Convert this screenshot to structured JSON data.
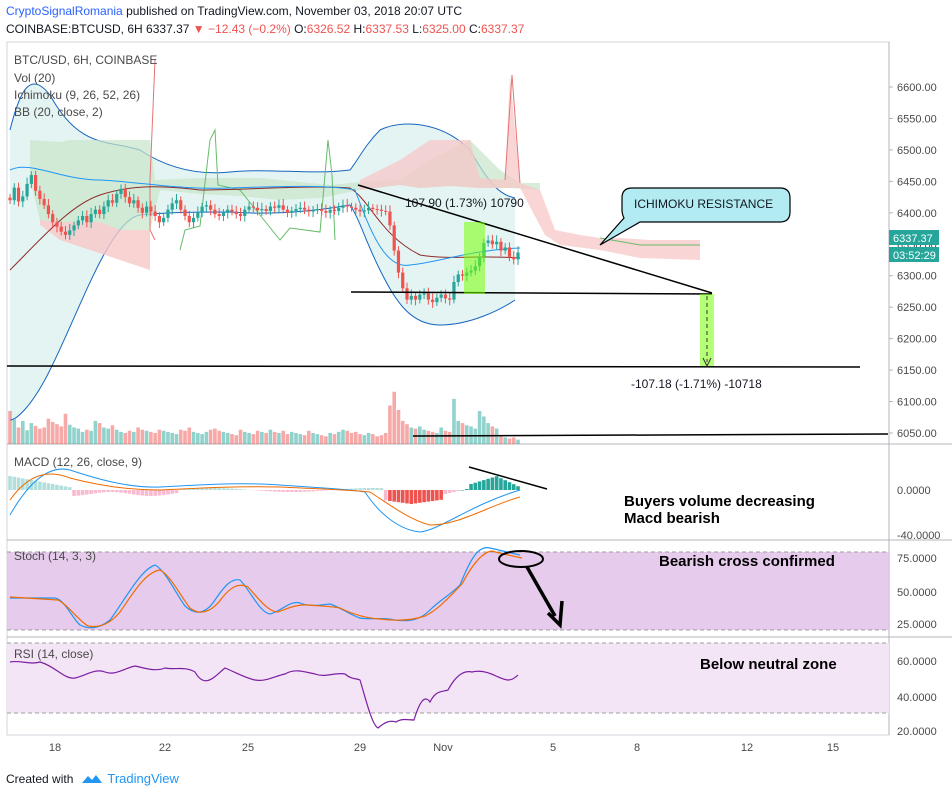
{
  "header": {
    "author": "CryptoSignalRomania",
    "published_text": "published on TradingView.com, November 03, 2018 20:07 UTC",
    "symbol": "COINBASE:BTCUSD, 6H",
    "last": "6337.37",
    "change": "−12.43 (−0.2%)",
    "o_label": "O:",
    "o": "6326.52",
    "h_label": "H:",
    "h": "6337.53",
    "l_label": "L:",
    "l": "6325.00",
    "c_label": "C:",
    "c": "6337.37"
  },
  "footer": {
    "created_with": "Created with",
    "brand": "TradingView",
    "logo_icon": "tradingview-logo-icon"
  },
  "colors": {
    "up": "#26a69a",
    "down": "#ef5350",
    "cloud_red": "#f7c7c7",
    "cloud_green": "#c8e6c9",
    "bb": "#2196f3",
    "stoch_bg": "#e1bee7",
    "rsi_bg": "#f3e5f5"
  },
  "chart_data": [
    {
      "type": "candlestick",
      "panel": "price",
      "legend": [
        "BTC/USD, 6H, COINBASE",
        "Vol (20)",
        "Ichimoku (9, 26, 52, 26)",
        "BB (20, close, 2)"
      ],
      "x_ticks": [
        "18",
        "22",
        "25",
        "29",
        "Nov",
        "5",
        "8",
        "12",
        "15"
      ],
      "y_ticks": [
        "6600.00",
        "6550.00",
        "6500.00",
        "6450.00",
        "6400.00",
        "6350.00",
        "6300.00",
        "6250.00",
        "6200.00",
        "6150.00",
        "6100.00",
        "6050.00"
      ],
      "ylim": [
        6030,
        6610
      ],
      "last_price_label": "6337.37",
      "countdown_label": "03:52:29",
      "close": [
        6420,
        6440,
        6418,
        6426,
        6446,
        6460,
        6435,
        6422,
        6412,
        6398,
        6385,
        6378,
        6370,
        6365,
        6372,
        6380,
        6388,
        6395,
        6385,
        6398,
        6405,
        6398,
        6410,
        6420,
        6416,
        6430,
        6438,
        6425,
        6415,
        6420,
        6408,
        6400,
        6410,
        6402,
        6395,
        6385,
        6392,
        6405,
        6415,
        6420,
        6405,
        6395,
        6385,
        6392,
        6400,
        6410,
        6412,
        6405,
        6398,
        6395,
        6400,
        6405,
        6402,
        6398,
        6395,
        6405,
        6410,
        6408,
        6404,
        6406,
        6403,
        6410,
        6408,
        6412,
        6405,
        6400,
        6403,
        6406,
        6408,
        6405,
        6402,
        6404,
        6406,
        6403,
        6400,
        6405,
        6403,
        6408,
        6412,
        6410,
        6408,
        6405,
        6402,
        6404,
        6408,
        6406,
        6405,
        6403,
        6402,
        6380,
        6340,
        6305,
        6280,
        6262,
        6268,
        6262,
        6270,
        6272,
        6262,
        6258,
        6265,
        6270,
        6264,
        6262,
        6290,
        6302,
        6300,
        6305,
        6308,
        6315,
        6330,
        6352,
        6356,
        6350,
        6354,
        6340,
        6345,
        6330,
        6326,
        6337
      ],
      "volume": [
        60,
        45,
        30,
        42,
        25,
        38,
        33,
        28,
        30,
        46,
        40,
        36,
        32,
        55,
        35,
        30,
        28,
        22,
        26,
        24,
        42,
        38,
        30,
        28,
        34,
        26,
        22,
        20,
        24,
        22,
        30,
        26,
        24,
        22,
        20,
        26,
        24,
        22,
        20,
        18,
        26,
        24,
        30,
        22,
        20,
        18,
        22,
        26,
        28,
        24,
        22,
        20,
        18,
        16,
        26,
        22,
        20,
        18,
        24,
        22,
        20,
        26,
        22,
        20,
        24,
        18,
        22,
        20,
        18,
        16,
        24,
        20,
        18,
        16,
        14,
        20,
        18,
        22,
        26,
        24,
        20,
        22,
        18,
        16,
        20,
        18,
        14,
        16,
        20,
        70,
        95,
        62,
        42,
        36,
        30,
        28,
        32,
        26,
        24,
        22,
        20,
        30,
        24,
        22,
        82,
        42,
        38,
        34,
        32,
        28,
        60,
        50,
        38,
        32,
        28,
        14,
        12,
        10,
        12,
        8
      ],
      "annotations": [
        "107.90 (1.73%) 10790",
        "ICHIMOKU RESISTANCE",
        "-107.18 (-1.71%) -10718"
      ]
    },
    {
      "type": "histogram",
      "panel": "macd",
      "legend": "MACD (12, 26, close, 9)",
      "y_ticks": [
        "0.0000",
        "-40.0000"
      ],
      "ylim": [
        -48,
        38
      ],
      "annotation": [
        "Buyers volume decreasing",
        "Macd bearish"
      ]
    },
    {
      "type": "line",
      "panel": "stoch",
      "legend": "Stoch (14, 3, 3)",
      "y_ticks": [
        "75.0000",
        "50.0000",
        "25.0000"
      ],
      "ylim": [
        18,
        82
      ],
      "annotation": "Bearish cross confirmed"
    },
    {
      "type": "line",
      "panel": "rsi",
      "legend": "RSI (14, close)",
      "y_ticks": [
        "60.0000",
        "40.0000",
        "20.0000"
      ],
      "ylim": [
        19,
        72
      ],
      "annotation": "Below neutral zone"
    }
  ]
}
